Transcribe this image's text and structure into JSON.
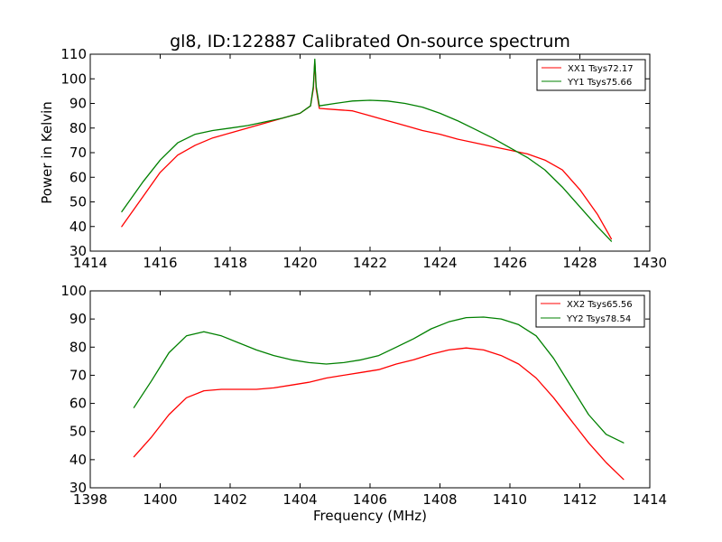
{
  "figure": {
    "title": "gl8, ID:122887 Calibrated On-source spectrum"
  },
  "chart_data": [
    {
      "type": "line",
      "title": "gl8, ID:122887 Calibrated On-source spectrum",
      "xlabel": "",
      "ylabel": "Power in Kelvin",
      "xlim": [
        1414,
        1430
      ],
      "ylim": [
        30,
        110
      ],
      "xticks": [
        1414,
        1416,
        1418,
        1420,
        1422,
        1424,
        1426,
        1428,
        1430
      ],
      "yticks": [
        30,
        40,
        50,
        60,
        70,
        80,
        90,
        100,
        110
      ],
      "legend_position": "top-right",
      "grid": false,
      "series": [
        {
          "name": "XX1 Tsys72.17",
          "color": "#ff0000",
          "x": [
            1414.9,
            1415.5,
            1416.0,
            1416.5,
            1417.0,
            1417.5,
            1418.0,
            1418.5,
            1419.0,
            1419.5,
            1420.0,
            1420.3,
            1420.38,
            1420.42,
            1420.46,
            1420.55,
            1421.0,
            1421.5,
            1422.0,
            1422.5,
            1423.0,
            1423.5,
            1424.0,
            1424.5,
            1425.0,
            1425.5,
            1426.0,
            1426.5,
            1427.0,
            1427.5,
            1428.0,
            1428.5,
            1428.9
          ],
          "y": [
            40,
            52,
            62,
            69,
            73,
            76,
            78,
            80,
            82,
            84,
            86,
            89,
            96,
            107,
            96,
            88,
            87.5,
            87,
            85,
            83,
            81,
            79,
            77.5,
            75.5,
            74,
            72.5,
            71,
            69.5,
            67,
            63,
            55,
            45,
            35
          ]
        },
        {
          "name": "YY1 Tsys75.66",
          "color": "#008000",
          "x": [
            1414.9,
            1415.5,
            1416.0,
            1416.5,
            1417.0,
            1417.5,
            1418.0,
            1418.5,
            1419.0,
            1419.5,
            1420.0,
            1420.3,
            1420.38,
            1420.42,
            1420.46,
            1420.55,
            1421.0,
            1421.5,
            1422.0,
            1422.5,
            1423.0,
            1423.5,
            1424.0,
            1424.5,
            1425.0,
            1425.5,
            1426.0,
            1426.5,
            1427.0,
            1427.5,
            1428.0,
            1428.5,
            1428.9
          ],
          "y": [
            46,
            58,
            67,
            74,
            77.5,
            79,
            80,
            81,
            82.5,
            84,
            86,
            89,
            97,
            108,
            97,
            89,
            90,
            91,
            91.3,
            91,
            90,
            88.5,
            86,
            83,
            79.5,
            76,
            72,
            68,
            63,
            56,
            48,
            40,
            34
          ]
        }
      ]
    },
    {
      "type": "line",
      "title": "",
      "xlabel": "Frequency (MHz)",
      "ylabel": "",
      "xlim": [
        1398,
        1414
      ],
      "ylim": [
        30,
        100
      ],
      "xticks": [
        1398,
        1400,
        1402,
        1404,
        1406,
        1408,
        1410,
        1412,
        1414
      ],
      "yticks": [
        30,
        40,
        50,
        60,
        70,
        80,
        90,
        100
      ],
      "legend_position": "top-right",
      "grid": false,
      "series": [
        {
          "name": "XX2 Tsys65.56",
          "color": "#ff0000",
          "x": [
            1399.25,
            1399.75,
            1400.25,
            1400.75,
            1401.25,
            1401.75,
            1402.25,
            1402.75,
            1403.25,
            1403.75,
            1404.25,
            1404.75,
            1405.25,
            1405.75,
            1406.25,
            1406.75,
            1407.25,
            1407.75,
            1408.25,
            1408.75,
            1409.25,
            1409.75,
            1410.25,
            1410.75,
            1411.25,
            1411.75,
            1412.25,
            1412.75,
            1413.25
          ],
          "y": [
            41,
            48,
            56,
            62,
            64.5,
            65,
            65,
            65,
            65.5,
            66.5,
            67.5,
            69,
            70,
            71,
            72,
            74,
            75.5,
            77.5,
            79,
            79.7,
            79,
            77,
            74,
            69,
            62,
            54,
            46,
            39,
            33
          ]
        },
        {
          "name": "YY2 Tsys78.54",
          "color": "#008000",
          "x": [
            1399.25,
            1399.75,
            1400.25,
            1400.75,
            1401.25,
            1401.75,
            1402.25,
            1402.75,
            1403.25,
            1403.75,
            1404.25,
            1404.75,
            1405.25,
            1405.75,
            1406.25,
            1406.75,
            1407.25,
            1407.75,
            1408.25,
            1408.75,
            1409.25,
            1409.75,
            1410.25,
            1410.75,
            1411.25,
            1411.75,
            1412.25,
            1412.75,
            1413.25
          ],
          "y": [
            58.5,
            68,
            78,
            84,
            85.5,
            84,
            81.5,
            79,
            77,
            75.5,
            74.5,
            74,
            74.5,
            75.5,
            77,
            80,
            83,
            86.5,
            89,
            90.5,
            90.7,
            90,
            88,
            84,
            76,
            66,
            56,
            49,
            46
          ]
        }
      ]
    }
  ]
}
